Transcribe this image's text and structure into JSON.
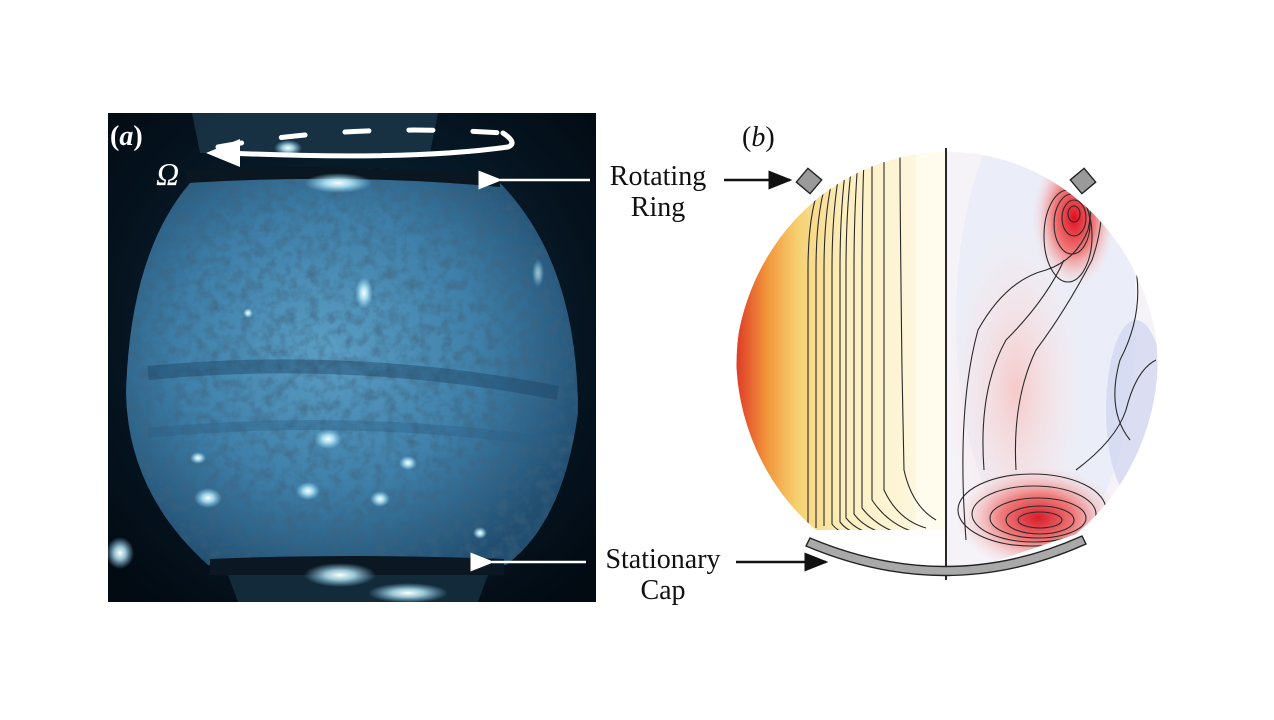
{
  "panel_a": {
    "label": "(a)",
    "label_letter": "a",
    "omega_symbol": "Ω"
  },
  "panel_b": {
    "label": "(b)",
    "label_letter": "b"
  },
  "annotations": {
    "rotating_ring_line1": "Rotating",
    "rotating_ring_line2": "Ring",
    "stationary_cap_line1": "Stationary",
    "stationary_cap_line2": "Cap"
  },
  "colors": {
    "photo_background": "#04121c",
    "sphere_fluid": "#3d7ea8",
    "glow": "#bff2ff",
    "warm_dark": "#c0171b",
    "warm_mid": "#f2a43a",
    "warm_light": "#fbf1c2",
    "positive_red": "#e0404a",
    "negative_blue": "#1b2a9a",
    "hardware_gray": "#a9a9a9"
  }
}
